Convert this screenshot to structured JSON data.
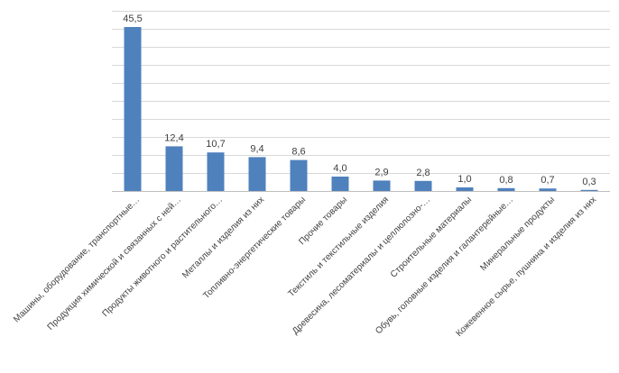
{
  "chart_data": {
    "type": "bar",
    "title": "",
    "xlabel": "",
    "ylabel": "",
    "ylim": [
      0,
      50
    ],
    "grid": true,
    "legend": "none",
    "bar_color": "#4f81bd",
    "categories": [
      "Машины, оборудование, транспортные…",
      "Продукция химической и связанных с ней…",
      "Продукты животного и растительного…",
      "Металлы и изделия из них",
      "Топливно-энергетические товары",
      "Прочие товары",
      "Текстиль и текстильные изделия",
      "Древесина, лесоматериалы и целлюлозно-…",
      "Строительные материалы",
      "Обувь, головные изделия и галантерейные…",
      "Минеральные продукты",
      "Кожевенное сырье, пушнина и изделия из них"
    ],
    "values": [
      45.5,
      12.4,
      10.7,
      9.4,
      8.6,
      4.0,
      2.9,
      2.8,
      1.0,
      0.8,
      0.7,
      0.3
    ],
    "value_labels": [
      "45,5",
      "12,4",
      "10,7",
      "9,4",
      "8,6",
      "4,0",
      "2,9",
      "2,8",
      "1,0",
      "0,8",
      "0,7",
      "0,3"
    ]
  }
}
